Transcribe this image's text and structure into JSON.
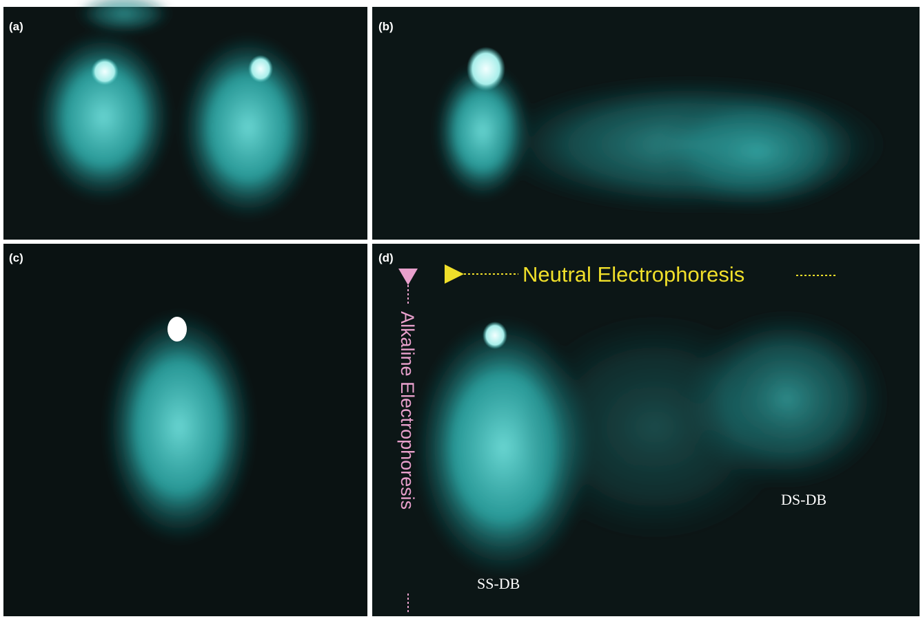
{
  "panels": [
    {
      "label": "(a)"
    },
    {
      "label": "(b)"
    },
    {
      "label": "(c)"
    },
    {
      "label": "(d)"
    }
  ],
  "annotations": {
    "neutral": "Neutral Electrophoresis",
    "alkaline": "Alkaline Electrophoresis",
    "ss": "SS-DB",
    "ds": "DS-DB"
  }
}
